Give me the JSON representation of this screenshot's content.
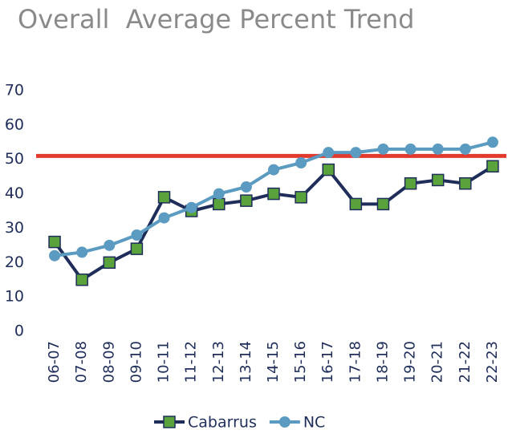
{
  "chart_data": {
    "type": "line",
    "title": "Overall  Average Percent Trend",
    "categories": [
      "06-07",
      "07-08",
      "08-09",
      "09-10",
      "10-11",
      "11-12",
      "12-13",
      "13-14",
      "14-15",
      "15-16",
      "16-17",
      "17-18",
      "18-19",
      "19-20",
      "20-21",
      "21-22",
      "22-23"
    ],
    "series": [
      {
        "name": "Cabarrus",
        "color": "#1f2d5a",
        "marker_color": "#5aa33c",
        "marker": "square",
        "values": [
          26,
          15,
          20,
          24,
          39,
          35,
          37,
          38,
          40,
          39,
          47,
          37,
          37,
          43,
          44,
          43,
          48
        ]
      },
      {
        "name": "NC",
        "color": "#5b9bc2",
        "marker_color": "#5b9bc2",
        "marker": "circle",
        "values": [
          22,
          23,
          25,
          28,
          33,
          36,
          40,
          42,
          47,
          49,
          52,
          52,
          53,
          53,
          53,
          53,
          55
        ]
      }
    ],
    "reference_line": {
      "value": 51,
      "color": "#e23b2e"
    },
    "ylim": [
      0,
      70
    ],
    "yticks": [
      0,
      10,
      20,
      30,
      40,
      50,
      60,
      70
    ],
    "legend": "bottom"
  }
}
